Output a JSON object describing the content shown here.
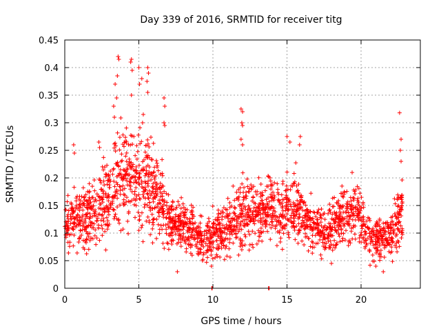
{
  "chart_data": {
    "type": "scatter",
    "title": "Day 339 of 2016, SRMTID for receiver titg",
    "xlabel": "GPS time / hours",
    "ylabel": "SRMTID / TECUs",
    "xlim": [
      0,
      24
    ],
    "ylim": [
      0,
      0.45
    ],
    "xticks": [
      0,
      5,
      10,
      15,
      20
    ],
    "xtick_labels": [
      "0",
      "5",
      "10",
      "15",
      "20"
    ],
    "yticks": [
      0,
      0.05,
      0.1,
      0.15,
      0.2,
      0.25,
      0.3,
      0.35,
      0.4,
      0.45
    ],
    "ytick_labels": [
      "0",
      "0.05",
      "0.1",
      "0.15",
      "0.2",
      "0.25",
      "0.3",
      "0.35",
      "0.4",
      "0.45"
    ],
    "grid": true,
    "marker": "plus",
    "color": "#ff0000",
    "envelope": {
      "x": [
        0,
        0.5,
        1,
        1.5,
        2,
        2.5,
        3,
        3.5,
        4,
        4.5,
        5,
        5.5,
        6,
        6.5,
        7,
        7.5,
        8,
        8.5,
        9,
        9.5,
        10,
        10.5,
        11,
        11.5,
        12,
        12.5,
        13,
        13.5,
        14,
        14.5,
        15,
        15.5,
        16,
        16.5,
        17,
        17.5,
        18,
        18.5,
        19,
        19.5,
        20,
        20.5,
        21,
        21.5,
        22,
        22.5,
        22.8
      ],
      "center": [
        0.115,
        0.12,
        0.125,
        0.13,
        0.145,
        0.16,
        0.17,
        0.19,
        0.21,
        0.2,
        0.19,
        0.2,
        0.175,
        0.15,
        0.13,
        0.12,
        0.115,
        0.11,
        0.095,
        0.085,
        0.09,
        0.1,
        0.11,
        0.12,
        0.135,
        0.14,
        0.13,
        0.14,
        0.15,
        0.13,
        0.145,
        0.15,
        0.125,
        0.115,
        0.11,
        0.1,
        0.11,
        0.125,
        0.135,
        0.145,
        0.125,
        0.095,
        0.09,
        0.09,
        0.1,
        0.12,
        0.14
      ],
      "spread": [
        0.035,
        0.04,
        0.045,
        0.05,
        0.05,
        0.055,
        0.06,
        0.07,
        0.07,
        0.065,
        0.07,
        0.07,
        0.065,
        0.05,
        0.04,
        0.035,
        0.035,
        0.035,
        0.03,
        0.03,
        0.035,
        0.035,
        0.04,
        0.04,
        0.05,
        0.05,
        0.04,
        0.045,
        0.05,
        0.04,
        0.045,
        0.05,
        0.04,
        0.035,
        0.035,
        0.035,
        0.035,
        0.04,
        0.045,
        0.045,
        0.04,
        0.035,
        0.035,
        0.03,
        0.03,
        0.045,
        0.06
      ]
    },
    "count": 2200,
    "outliers": [
      {
        "x": 0.6,
        "y": 0.26
      },
      {
        "x": 0.65,
        "y": 0.245
      },
      {
        "x": 2.3,
        "y": 0.265
      },
      {
        "x": 2.35,
        "y": 0.255
      },
      {
        "x": 3.4,
        "y": 0.37
      },
      {
        "x": 3.5,
        "y": 0.345
      },
      {
        "x": 3.6,
        "y": 0.42
      },
      {
        "x": 3.65,
        "y": 0.415
      },
      {
        "x": 3.55,
        "y": 0.385
      },
      {
        "x": 4.45,
        "y": 0.41
      },
      {
        "x": 4.5,
        "y": 0.415
      },
      {
        "x": 4.55,
        "y": 0.395
      },
      {
        "x": 4.5,
        "y": 0.35
      },
      {
        "x": 5.0,
        "y": 0.4
      },
      {
        "x": 5.05,
        "y": 0.37
      },
      {
        "x": 5.2,
        "y": 0.38
      },
      {
        "x": 5.6,
        "y": 0.4
      },
      {
        "x": 5.65,
        "y": 0.39
      },
      {
        "x": 5.55,
        "y": 0.375
      },
      {
        "x": 5.6,
        "y": 0.355
      },
      {
        "x": 6.7,
        "y": 0.345
      },
      {
        "x": 6.75,
        "y": 0.33
      },
      {
        "x": 6.7,
        "y": 0.3
      },
      {
        "x": 6.75,
        "y": 0.295
      },
      {
        "x": 3.3,
        "y": 0.33
      },
      {
        "x": 3.35,
        "y": 0.31
      },
      {
        "x": 5.3,
        "y": 0.315
      },
      {
        "x": 5.25,
        "y": 0.3
      },
      {
        "x": 11.9,
        "y": 0.325
      },
      {
        "x": 12.0,
        "y": 0.32
      },
      {
        "x": 11.95,
        "y": 0.3
      },
      {
        "x": 12.0,
        "y": 0.295
      },
      {
        "x": 11.9,
        "y": 0.27
      },
      {
        "x": 12.0,
        "y": 0.26
      },
      {
        "x": 22.6,
        "y": 0.318
      },
      {
        "x": 22.7,
        "y": 0.27
      },
      {
        "x": 22.65,
        "y": 0.25
      },
      {
        "x": 22.7,
        "y": 0.23
      },
      {
        "x": 15.2,
        "y": 0.265
      },
      {
        "x": 15.0,
        "y": 0.275
      },
      {
        "x": 15.9,
        "y": 0.275
      },
      {
        "x": 15.85,
        "y": 0.26
      },
      {
        "x": 7.6,
        "y": 0.03
      },
      {
        "x": 9.9,
        "y": 0.04
      },
      {
        "x": 9.95,
        "y": 0.0
      },
      {
        "x": 9.92,
        "y": 0.0
      },
      {
        "x": 13.75,
        "y": 0.0
      },
      {
        "x": 13.8,
        "y": 0.0
      },
      {
        "x": 21.5,
        "y": 0.03
      },
      {
        "x": 21.0,
        "y": 0.04
      },
      {
        "x": 18.0,
        "y": 0.045
      },
      {
        "x": 9.3,
        "y": 0.05
      }
    ]
  }
}
